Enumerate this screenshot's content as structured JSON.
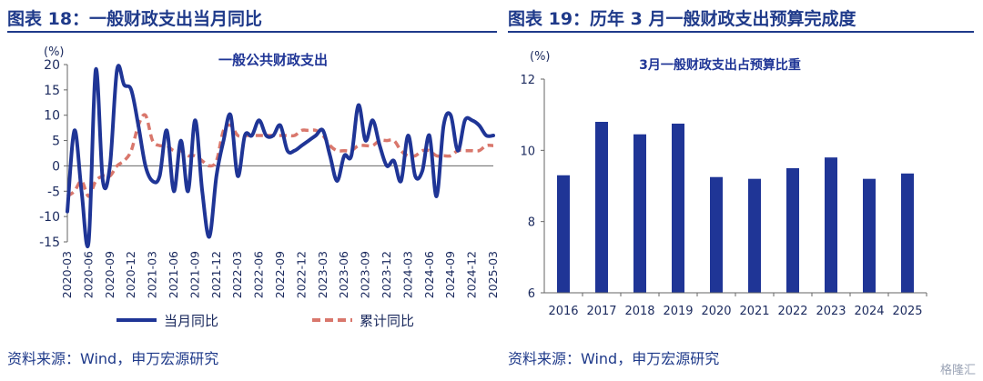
{
  "panels": [
    {
      "figure_title": "图表 18：一般财政支出当月同比",
      "source": "资料来源：Wind，申万宏源研究"
    },
    {
      "figure_title": "图表 19：历年 3 月一般财政支出预算完成度",
      "source": "资料来源：Wind，申万宏源研究"
    }
  ],
  "watermark": "格隆汇",
  "colors": {
    "accent": "#1f3a8a",
    "line": "#1f3596",
    "dash": "#d9776c",
    "bar": "#1f3596"
  },
  "chart_data": [
    {
      "type": "line",
      "title": "一般公共财政支出",
      "unit": "(%)",
      "ylim": [
        -15,
        20
      ],
      "yticks": [
        -15,
        -10,
        -5,
        0,
        5,
        10,
        15,
        20
      ],
      "x": [
        "2020-03",
        "2020-04",
        "2020-05",
        "2020-06",
        "2020-07",
        "2020-08",
        "2020-09",
        "2020-10",
        "2020-11",
        "2020-12",
        "2021-01",
        "2021-02",
        "2021-03",
        "2021-04",
        "2021-05",
        "2021-06",
        "2021-07",
        "2021-08",
        "2021-09",
        "2021-10",
        "2021-11",
        "2021-12",
        "2022-01",
        "2022-02",
        "2022-03",
        "2022-04",
        "2022-05",
        "2022-06",
        "2022-07",
        "2022-08",
        "2022-09",
        "2022-10",
        "2022-11",
        "2022-12",
        "2023-01",
        "2023-02",
        "2023-03",
        "2023-04",
        "2023-05",
        "2023-06",
        "2023-07",
        "2023-08",
        "2023-09",
        "2023-10",
        "2023-11",
        "2023-12",
        "2024-01",
        "2024-02",
        "2024-03",
        "2024-04",
        "2024-05",
        "2024-06",
        "2024-07",
        "2024-08",
        "2024-09",
        "2024-10",
        "2024-11",
        "2024-12",
        "2025-01",
        "2025-02",
        "2025-03"
      ],
      "xticks": [
        "2020-03",
        "2020-06",
        "2020-09",
        "2020-12",
        "2021-03",
        "2021-06",
        "2021-09",
        "2021-12",
        "2022-03",
        "2022-06",
        "2022-09",
        "2022-12",
        "2023-03",
        "2023-06",
        "2023-09",
        "2023-12",
        "2024-03",
        "2024-06",
        "2024-09",
        "2024-12",
        "2025-03"
      ],
      "series": [
        {
          "name": "当月同比",
          "style": "solid",
          "values": [
            -9,
            7,
            -5,
            -15,
            19,
            -3,
            0,
            19,
            16,
            15,
            8,
            0,
            -3,
            -2,
            7,
            -5,
            5,
            -5,
            9,
            -5,
            -14,
            -2,
            5,
            10,
            -2,
            6,
            6,
            9,
            6,
            6,
            8,
            3,
            3,
            4,
            5,
            6,
            7,
            2,
            -3,
            2,
            2,
            12,
            5,
            9,
            4,
            0,
            1,
            -3,
            6,
            -2,
            -1,
            6,
            -6,
            8,
            10,
            3,
            9,
            9,
            8,
            6,
            6
          ]
        },
        {
          "name": "累计同比",
          "style": "dashed",
          "values": [
            -6,
            -5,
            -3,
            -6,
            -3,
            -2,
            -2,
            0,
            1,
            3,
            8,
            10,
            5,
            4,
            4,
            3,
            3,
            2,
            2,
            1,
            0,
            1,
            7,
            8,
            6,
            6,
            6,
            6,
            6,
            6,
            6,
            6,
            6,
            7,
            7,
            7,
            6,
            4,
            3,
            3,
            3,
            4,
            4,
            4,
            5,
            5,
            5,
            3,
            2,
            2,
            3,
            3,
            2,
            2,
            2,
            3,
            3,
            3,
            3,
            4,
            4
          ]
        }
      ]
    },
    {
      "type": "bar",
      "title": "3月一般财政支出占预算比重",
      "unit": "(%)",
      "ylim": [
        6,
        12
      ],
      "yticks": [
        6,
        8,
        10,
        12
      ],
      "categories": [
        "2016",
        "2017",
        "2018",
        "2019",
        "2020",
        "2021",
        "2022",
        "2023",
        "2024",
        "2025"
      ],
      "values": [
        9.3,
        10.8,
        10.45,
        10.75,
        9.25,
        9.2,
        9.5,
        9.8,
        9.2,
        9.35
      ]
    }
  ]
}
